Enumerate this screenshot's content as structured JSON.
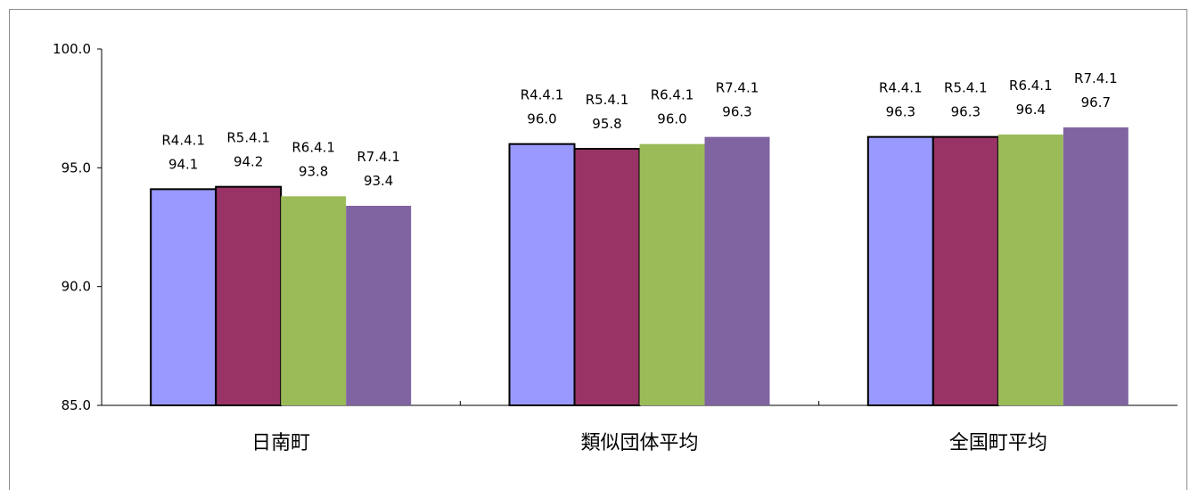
{
  "chart_data": {
    "type": "bar",
    "categories": [
      "日南町",
      "類似団体平均",
      "全国町平均"
    ],
    "series": [
      {
        "name": "R4.4.1",
        "values": [
          94.1,
          96.0,
          96.3
        ],
        "color": "#9999ff"
      },
      {
        "name": "R5.4.1",
        "values": [
          94.2,
          95.8,
          96.3
        ],
        "color": "#993366"
      },
      {
        "name": "R6.4.1",
        "values": [
          93.8,
          96.0,
          96.4
        ],
        "color": "#9bbb59"
      },
      {
        "name": "R7.4.1",
        "values": [
          93.4,
          96.3,
          96.7
        ],
        "color": "#8064a2"
      }
    ],
    "ylim": [
      85.0,
      100.0
    ],
    "yticks": [
      "85.0",
      "90.0",
      "95.0",
      "100.0"
    ],
    "ytick_values": [
      85,
      90,
      95,
      100
    ],
    "value_labels": [
      [
        "94.1",
        "96.0",
        "96.3"
      ],
      [
        "94.2",
        "95.8",
        "96.3"
      ],
      [
        "93.8",
        "96.0",
        "96.4"
      ],
      [
        "93.4",
        "96.3",
        "96.7"
      ]
    ],
    "bordered_series": [
      0,
      1
    ],
    "title": "",
    "xlabel": "",
    "ylabel": "",
    "grid": false,
    "legend": "none"
  }
}
